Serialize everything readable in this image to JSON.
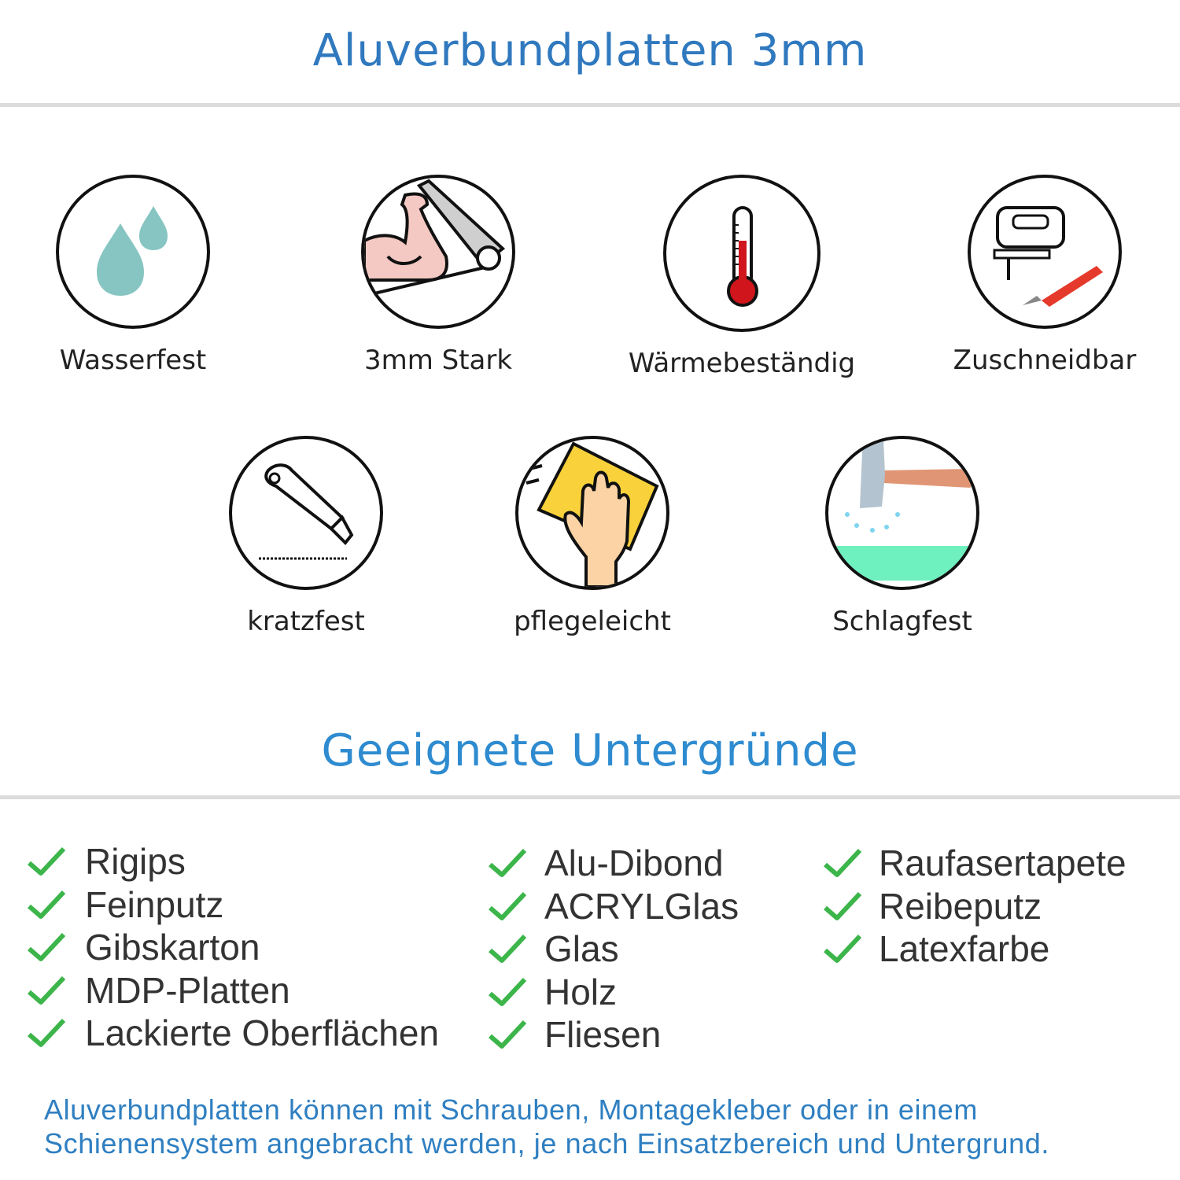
{
  "header": {
    "title": "Aluverbundplatten 3mm"
  },
  "features": [
    {
      "label": "Wasserfest",
      "icon": "water-drops-icon"
    },
    {
      "label": "3mm Stark",
      "icon": "flexed-arm-icon"
    },
    {
      "label": "Wärmebeständig",
      "icon": "thermometer-icon"
    },
    {
      "label": "Zuschneidbar",
      "icon": "jigsaw-icon"
    },
    {
      "label": "kratzfest",
      "icon": "cutter-knife-icon"
    },
    {
      "label": "pflegeleicht",
      "icon": "cleaning-hand-icon"
    },
    {
      "label": "Schlagfest",
      "icon": "hammer-icon"
    }
  ],
  "surfaces": {
    "title": "Geeignete Untergründe",
    "columns": [
      [
        "Rigips",
        "Feinputz",
        "Gibskarton",
        "MDP-Platten",
        "Lackierte Oberflächen"
      ],
      [
        "Alu-Dibond",
        "ACRYLGlas",
        "Glas",
        "Holz",
        "Fliesen"
      ],
      [
        "Raufasertapete",
        "Reibeputz",
        "Latexfarbe"
      ]
    ]
  },
  "note": {
    "line1": "Aluverbundplatten können mit Schrauben, Montagekleber oder in einem",
    "line2": "Schienensystem angebracht werden, je nach Einsatzbereich und Untergrund."
  },
  "colors": {
    "title": "#3079bf",
    "subtitle": "#2e8bd0",
    "check": "#3cb54a",
    "note": "#2f7fc1"
  }
}
